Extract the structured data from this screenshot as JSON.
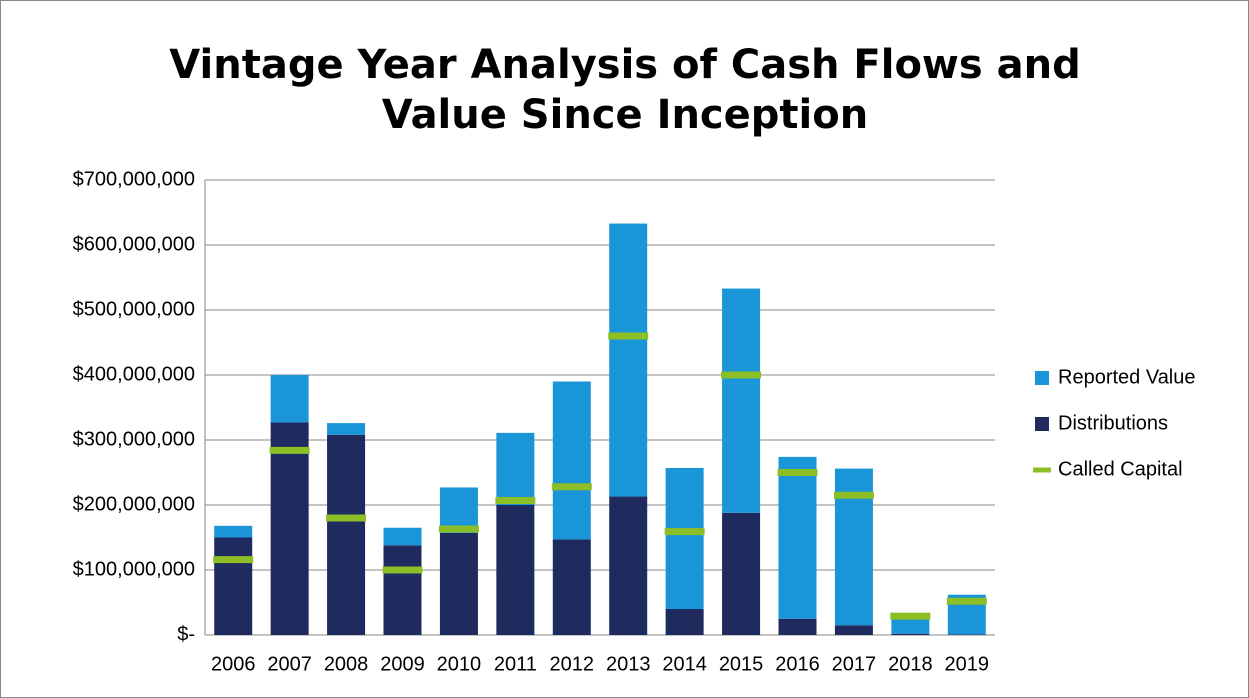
{
  "chart_data": {
    "type": "bar",
    "title": "Vintage Year Analysis of Cash Flows and Value Since Inception",
    "categories": [
      "2006",
      "2007",
      "2008",
      "2009",
      "2010",
      "2011",
      "2012",
      "2013",
      "2014",
      "2015",
      "2016",
      "2017",
      "2018",
      "2019"
    ],
    "series": [
      {
        "name": "Distributions",
        "type": "bar",
        "color": "#1f2a5e",
        "values": [
          150000000,
          327000000,
          308000000,
          138000000,
          157000000,
          200000000,
          147000000,
          213000000,
          40000000,
          188000000,
          25000000,
          15000000,
          2000000,
          1000000
        ]
      },
      {
        "name": "Reported Value",
        "type": "bar",
        "color": "#1a96d8",
        "values": [
          18000000,
          73000000,
          18000000,
          27000000,
          70000000,
          111000000,
          243000000,
          420000000,
          217000000,
          345000000,
          249000000,
          241000000,
          23000000,
          61000000
        ]
      },
      {
        "name": "Called Capital",
        "type": "line",
        "color": "#8cbf26",
        "values": [
          116000000,
          284000000,
          180000000,
          100000000,
          163000000,
          207000000,
          228000000,
          460000000,
          159000000,
          400000000,
          250000000,
          215000000,
          29000000,
          52000000
        ]
      }
    ],
    "stacked": true,
    "ylim": [
      0,
      700000000
    ],
    "yticks": [
      {
        "value": 0,
        "label": "$-"
      },
      {
        "value": 100000000,
        "label": "$100,000,000"
      },
      {
        "value": 200000000,
        "label": "$200,000,000"
      },
      {
        "value": 300000000,
        "label": "$300,000,000"
      },
      {
        "value": 400000000,
        "label": "$400,000,000"
      },
      {
        "value": 500000000,
        "label": "$500,000,000"
      },
      {
        "value": 600000000,
        "label": "$600,000,000"
      },
      {
        "value": 700000000,
        "label": "$700,000,000"
      }
    ],
    "grid": true,
    "legend": "right"
  }
}
